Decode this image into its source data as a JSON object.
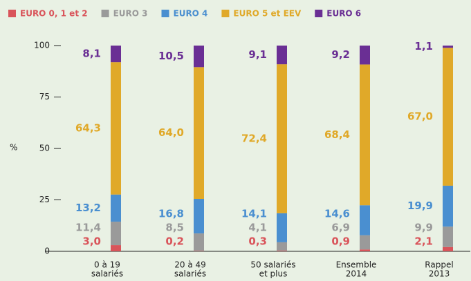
{
  "chart_data": {
    "type": "stacked_bar",
    "categories": [
      [
        "0 à 19",
        "salariés"
      ],
      [
        "20 à 49",
        "salariés"
      ],
      [
        "50 salariés",
        "et plus"
      ],
      [
        "Ensemble",
        "2014"
      ],
      [
        "Rappel",
        "2013"
      ]
    ],
    "ylabel": "%",
    "ylim": [
      0,
      100
    ],
    "yticks": [
      0,
      25,
      50,
      75,
      100
    ],
    "series": [
      {
        "name": "EURO 0, 1 et 2",
        "color": "#d9545a",
        "values": [
          3.0,
          0.2,
          0.3,
          0.9,
          2.1
        ],
        "value_labels": [
          "3,0",
          "0,2",
          "0,3",
          "0,9",
          "2,1"
        ]
      },
      {
        "name": "EURO 3",
        "color": "#9a9a9a",
        "values": [
          11.4,
          8.5,
          4.1,
          6.9,
          9.9
        ],
        "value_labels": [
          "11,4",
          "8,5",
          "4,1",
          "6,9",
          "9,9"
        ]
      },
      {
        "name": "EURO 4",
        "color": "#4a8fd0",
        "values": [
          13.2,
          16.8,
          14.1,
          14.6,
          19.9
        ],
        "value_labels": [
          "13,2",
          "16,8",
          "14,1",
          "14,6",
          "19,9"
        ]
      },
      {
        "name": "EURO 5 et EEV",
        "color": "#e0a929",
        "values": [
          64.3,
          64.0,
          72.4,
          68.4,
          67.0
        ],
        "value_labels": [
          "64,3",
          "64,0",
          "72,4",
          "68,4",
          "67,0"
        ]
      },
      {
        "name": "EURO 6",
        "color": "#6a2f94",
        "values": [
          8.1,
          10.5,
          9.1,
          9.2,
          1.1
        ],
        "value_labels": [
          "8,1",
          "10,5",
          "9,1",
          "9,2",
          "1,1"
        ]
      }
    ]
  }
}
